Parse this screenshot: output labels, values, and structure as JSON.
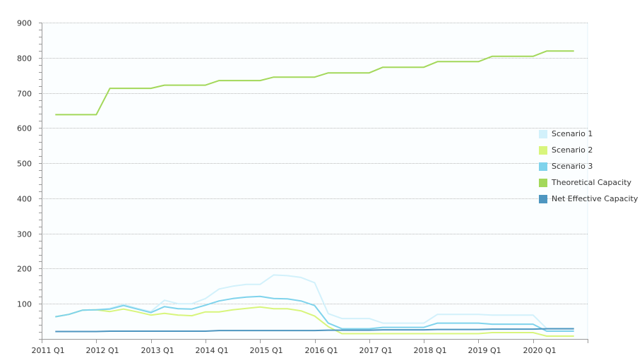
{
  "chart_data": {
    "type": "line",
    "ylim": [
      0,
      900
    ],
    "yticks": [
      100,
      200,
      300,
      400,
      500,
      600,
      700,
      800,
      900
    ],
    "xticks": [
      "2011 Q1",
      "2012 Q1",
      "2013 Q1",
      "2014 Q1",
      "2015 Q1",
      "2016 Q1",
      "2017 Q1",
      "2018 Q1",
      "2019 Q1",
      "2020 Q1"
    ],
    "x": [
      "2011 Q2",
      "2011 Q3",
      "2011 Q4",
      "2012 Q1",
      "2012 Q2",
      "2012 Q3",
      "2012 Q4",
      "2013 Q1",
      "2013 Q2",
      "2013 Q3",
      "2013 Q4",
      "2014 Q1",
      "2014 Q2",
      "2014 Q3",
      "2014 Q4",
      "2015 Q1",
      "2015 Q2",
      "2015 Q3",
      "2015 Q4",
      "2016 Q1",
      "2016 Q2",
      "2016 Q3",
      "2016 Q4",
      "2017 Q1",
      "2017 Q2",
      "2017 Q3",
      "2017 Q4",
      "2018 Q1",
      "2018 Q2",
      "2018 Q3",
      "2018 Q4",
      "2019 Q1",
      "2019 Q2",
      "2019 Q3",
      "2019 Q4",
      "2020 Q1",
      "2020 Q2",
      "2020 Q3",
      "2020 Q4"
    ],
    "grid": true,
    "legend_position": "right",
    "series": [
      {
        "name": "Scenario 1",
        "color": "#d2f1fb",
        "values": [
          63,
          70,
          82,
          83,
          87,
          98,
          87,
          78,
          110,
          100,
          100,
          115,
          142,
          150,
          155,
          155,
          182,
          180,
          175,
          160,
          72,
          58,
          58,
          58,
          45,
          45,
          45,
          45,
          70,
          70,
          70,
          70,
          68,
          68,
          68,
          68,
          30,
          30,
          30
        ]
      },
      {
        "name": "Scenario 2",
        "color": "#d8f57c",
        "values": [
          63,
          70,
          82,
          83,
          78,
          85,
          77,
          68,
          73,
          68,
          66,
          77,
          77,
          83,
          87,
          91,
          86,
          86,
          80,
          65,
          35,
          15,
          15,
          15,
          15,
          15,
          15,
          15,
          15,
          15,
          15,
          15,
          18,
          18,
          18,
          18,
          8,
          8,
          8
        ]
      },
      {
        "name": "Scenario 3",
        "color": "#7fd3ec",
        "values": [
          63,
          70,
          82,
          83,
          85,
          95,
          85,
          75,
          92,
          86,
          85,
          96,
          108,
          115,
          119,
          121,
          115,
          114,
          108,
          95,
          45,
          29,
          29,
          29,
          33,
          33,
          33,
          33,
          45,
          45,
          45,
          45,
          42,
          42,
          42,
          42,
          22,
          22,
          22
        ]
      },
      {
        "name": "Theoretical Capacity",
        "color": "#a3d85a",
        "values": [
          638,
          638,
          638,
          638,
          713,
          713,
          713,
          713,
          722,
          722,
          722,
          722,
          735,
          735,
          735,
          735,
          745,
          745,
          745,
          745,
          757,
          757,
          757,
          757,
          773,
          773,
          773,
          773,
          789,
          789,
          789,
          789,
          804,
          804,
          804,
          804,
          819,
          819,
          819
        ]
      },
      {
        "name": "Net Effective Capacity",
        "color": "#4e96c0",
        "values": [
          21,
          21,
          21,
          21,
          22,
          22,
          22,
          22,
          22,
          22,
          22,
          22,
          24,
          24,
          24,
          24,
          24,
          24,
          24,
          24,
          25,
          25,
          25,
          25,
          26,
          26,
          26,
          26,
          27,
          27,
          27,
          27,
          28,
          28,
          28,
          28,
          29,
          29,
          29
        ]
      }
    ]
  }
}
